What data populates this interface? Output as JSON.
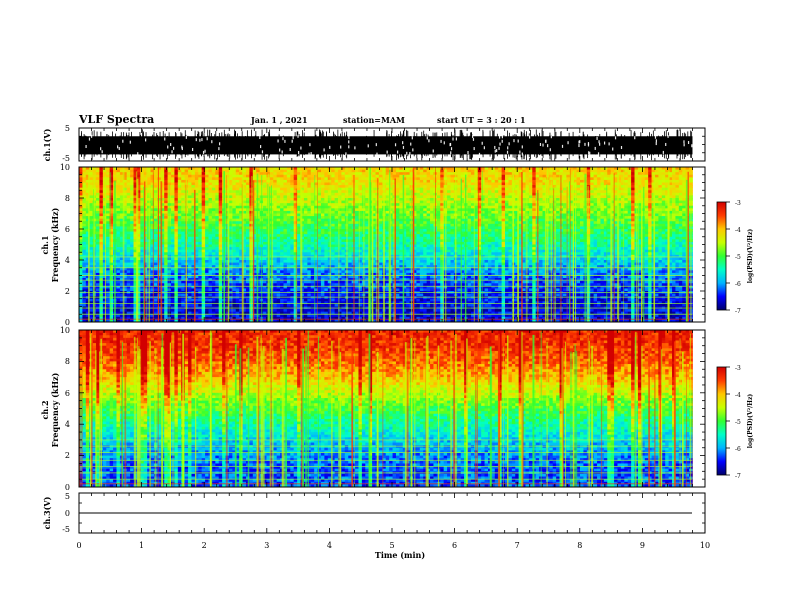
{
  "header": {
    "title": "VLF Spectra",
    "date": "Jan. 1 , 2021",
    "station": "station=MAM",
    "start": "start UT = 3 : 20 : 1"
  },
  "colors": {
    "colormap": [
      "#00006a",
      "#0000ff",
      "#00b4ff",
      "#00ffc8",
      "#32ff32",
      "#c8ff00",
      "#ffc800",
      "#ff3c00",
      "#d20000"
    ],
    "trace": "#000000"
  },
  "chart_data": [
    {
      "id": "ch1_waveform",
      "type": "line",
      "ylabel": "ch.1(V)",
      "ylim": [
        -5,
        5
      ],
      "yticks": [
        "5",
        "-5"
      ],
      "xlim": [
        0,
        10
      ],
      "envelope": {
        "upper": 2.5,
        "lower": -3.0,
        "max": 4.6,
        "min": -4.8,
        "end_min": 9.8
      }
    },
    {
      "id": "ch1_spectrogram",
      "type": "heatmap",
      "ylabel_line1": "ch.1",
      "ylabel_line2": "Frequency (kHz)",
      "ylim": [
        0,
        10
      ],
      "yticks": [
        "0",
        "2",
        "4",
        "6",
        "8",
        "10"
      ],
      "xlim": [
        0,
        10
      ],
      "end_min": 9.8,
      "colorbar": {
        "label": "log(PSD)(V²/Hz)",
        "range": [
          -7,
          -3
        ],
        "ticks": [
          "-3",
          "-4",
          "-5",
          "-6",
          "-7"
        ]
      },
      "profile_log_psd": [
        {
          "f": 0,
          "v": -6.6
        },
        {
          "f": 1,
          "v": -6.6
        },
        {
          "f": 2,
          "v": -6.4
        },
        {
          "f": 3,
          "v": -6.2
        },
        {
          "f": 4,
          "v": -5.8
        },
        {
          "f": 5,
          "v": -5.4
        },
        {
          "f": 6,
          "v": -5.1
        },
        {
          "f": 7,
          "v": -4.8
        },
        {
          "f": 8,
          "v": -4.5
        },
        {
          "f": 9,
          "v": -4.2
        },
        {
          "f": 10,
          "v": -4.1
        }
      ],
      "hum_lines_khz": [
        0.18,
        0.5,
        0.9,
        1.2,
        1.6,
        1.9,
        2.3,
        2.7,
        3.0,
        3.5,
        4.2
      ],
      "burst_count": 120
    },
    {
      "id": "ch2_spectrogram",
      "type": "heatmap",
      "ylabel_line1": "ch.2",
      "ylabel_line2": "Frequency (kHz)",
      "ylim": [
        0,
        10
      ],
      "yticks": [
        "0",
        "2",
        "4",
        "6",
        "8",
        "10"
      ],
      "xlim": [
        0,
        10
      ],
      "end_min": 9.8,
      "colorbar": {
        "label": "log(PSD)(V²/Hz)",
        "range": [
          -7,
          -3
        ],
        "ticks": [
          "-3",
          "-4",
          "-5",
          "-6",
          "-7"
        ]
      },
      "profile_log_psd": [
        {
          "f": 0,
          "v": -6.3
        },
        {
          "f": 1,
          "v": -6.3
        },
        {
          "f": 2,
          "v": -6.1
        },
        {
          "f": 3,
          "v": -5.8
        },
        {
          "f": 4,
          "v": -5.4
        },
        {
          "f": 5,
          "v": -5.0
        },
        {
          "f": 6,
          "v": -4.5
        },
        {
          "f": 7,
          "v": -4.0
        },
        {
          "f": 8,
          "v": -3.6
        },
        {
          "f": 9,
          "v": -3.4
        },
        {
          "f": 10,
          "v": -3.3
        }
      ],
      "hum_lines_khz": [
        0.2,
        0.5,
        0.9,
        1.3,
        1.7,
        2.2,
        2.6,
        3.0
      ],
      "burst_count": 110
    },
    {
      "id": "ch3_waveform",
      "type": "line",
      "ylabel": "ch.3(V)",
      "ylim": [
        -5,
        5
      ],
      "yticks": [
        "5",
        "0",
        "-5"
      ],
      "xlim": [
        0,
        10
      ],
      "xlabel": "Time (min)",
      "xticks": [
        "0",
        "1",
        "2",
        "3",
        "4",
        "5",
        "6",
        "7",
        "8",
        "9",
        "10"
      ],
      "value": 0
    }
  ]
}
